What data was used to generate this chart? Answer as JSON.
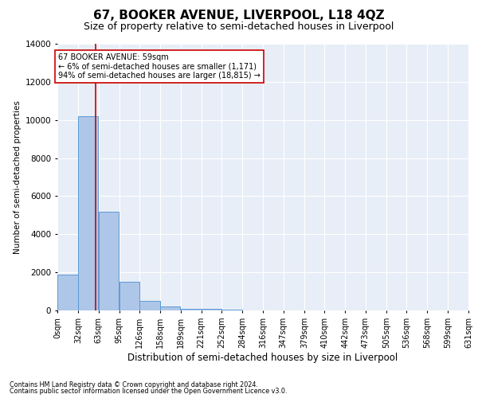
{
  "title": "67, BOOKER AVENUE, LIVERPOOL, L18 4QZ",
  "subtitle": "Size of property relative to semi-detached houses in Liverpool",
  "xlabel": "Distribution of semi-detached houses by size in Liverpool",
  "ylabel": "Number of semi-detached properties",
  "footnote1": "Contains HM Land Registry data © Crown copyright and database right 2024.",
  "footnote2": "Contains public sector information licensed under the Open Government Licence v3.0.",
  "annotation_line1": "67 BOOKER AVENUE: 59sqm",
  "annotation_line2": "← 6% of semi-detached houses are smaller (1,171)",
  "annotation_line3": "94% of semi-detached houses are larger (18,815) →",
  "property_size": 59,
  "bin_edges": [
    0,
    32,
    63,
    95,
    126,
    158,
    189,
    221,
    252,
    284,
    316,
    347,
    379,
    410,
    442,
    473,
    505,
    536,
    568,
    599,
    631
  ],
  "bar_heights": [
    1900,
    10200,
    5200,
    1500,
    500,
    200,
    100,
    100,
    50,
    10,
    5,
    2,
    1,
    0,
    0,
    0,
    0,
    0,
    0,
    0
  ],
  "bar_color": "#aec6e8",
  "bar_edge_color": "#5b9bd5",
  "vline_color": "#cc0000",
  "annotation_box_color": "#cc0000",
  "background_color": "#e8eef7",
  "ylim": [
    0,
    14000
  ],
  "yticks": [
    0,
    2000,
    4000,
    6000,
    8000,
    10000,
    12000,
    14000
  ],
  "grid_color": "#ffffff",
  "title_fontsize": 11,
  "subtitle_fontsize": 9,
  "xlabel_fontsize": 8.5,
  "ylabel_fontsize": 7.5,
  "tick_fontsize": 7,
  "annot_fontsize": 7
}
